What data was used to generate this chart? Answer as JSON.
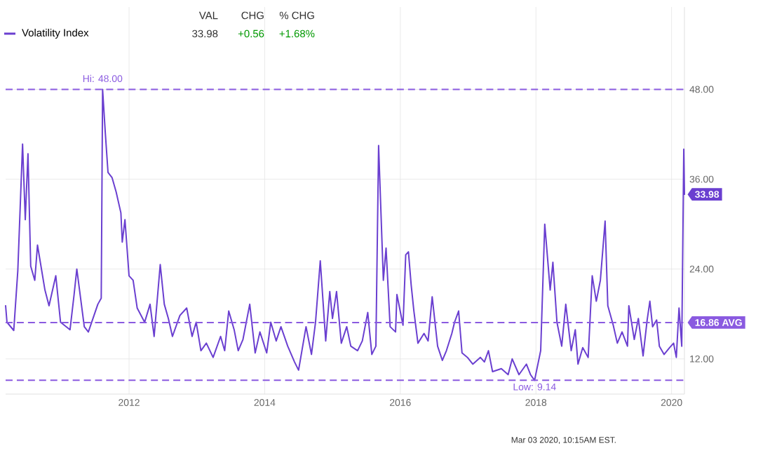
{
  "chart_data": {
    "type": "line",
    "x": [
      2010.18,
      2010.2,
      2010.3,
      2010.36,
      2010.43,
      2010.47,
      2010.51,
      2010.55,
      2010.61,
      2010.65,
      2010.76,
      2010.82,
      2010.92,
      2010.99,
      2011.13,
      2011.19,
      2011.23,
      2011.34,
      2011.4,
      2011.54,
      2011.59,
      2011.61,
      2011.65,
      2011.69,
      2011.75,
      2011.81,
      2011.88,
      2011.9,
      2011.94,
      2012.0,
      2012.06,
      2012.12,
      2012.23,
      2012.31,
      2012.37,
      2012.46,
      2012.52,
      2012.58,
      2012.64,
      2012.75,
      2012.85,
      2012.93,
      2012.99,
      2013.06,
      2013.14,
      2013.24,
      2013.35,
      2013.41,
      2013.47,
      2013.55,
      2013.61,
      2013.68,
      2013.78,
      2013.86,
      2013.93,
      2014.03,
      2014.09,
      2014.17,
      2014.24,
      2014.34,
      2014.44,
      2014.5,
      2014.61,
      2014.69,
      2014.75,
      2014.82,
      2014.9,
      2014.96,
      2015.0,
      2015.06,
      2015.13,
      2015.21,
      2015.27,
      2015.37,
      2015.44,
      2015.52,
      2015.58,
      2015.64,
      2015.68,
      2015.75,
      2015.79,
      2015.85,
      2015.93,
      2015.95,
      2016.04,
      2016.08,
      2016.12,
      2016.16,
      2016.2,
      2016.26,
      2016.35,
      2016.41,
      2016.47,
      2016.55,
      2016.62,
      2016.68,
      2016.76,
      2016.8,
      2016.86,
      2016.91,
      2016.99,
      2017.07,
      2017.18,
      2017.24,
      2017.3,
      2017.36,
      2017.49,
      2017.59,
      2017.65,
      2017.75,
      2017.86,
      2017.92,
      2017.98,
      2018.07,
      2018.13,
      2018.21,
      2018.25,
      2018.31,
      2018.38,
      2018.44,
      2018.52,
      2018.58,
      2018.62,
      2018.69,
      2018.77,
      2018.83,
      2018.89,
      2018.95,
      2019.02,
      2019.06,
      2019.14,
      2019.2,
      2019.27,
      2019.35,
      2019.37,
      2019.45,
      2019.51,
      2019.58,
      2019.64,
      2019.68,
      2019.72,
      2019.78,
      2019.82,
      2019.89,
      2019.97,
      2020.03,
      2020.07,
      2020.11,
      2020.15,
      2020.18,
      2020.19
    ],
    "series": [
      {
        "name": "Volatility Index",
        "color": "#6a3fd0",
        "values": [
          19.1,
          16.9,
          15.8,
          23.8,
          40.7,
          30.6,
          39.4,
          24.4,
          22.5,
          27.2,
          21.2,
          19.1,
          23.1,
          16.9,
          15.9,
          20.6,
          24.0,
          16.3,
          15.6,
          19.3,
          20.1,
          48.0,
          42.2,
          36.9,
          36.2,
          34.3,
          31.5,
          27.6,
          30.6,
          23.1,
          22.5,
          18.8,
          16.9,
          19.3,
          15.0,
          24.6,
          19.3,
          17.4,
          15.0,
          17.8,
          18.8,
          15.0,
          16.9,
          13.1,
          14.1,
          12.2,
          15.0,
          13.1,
          18.4,
          15.9,
          13.1,
          14.6,
          19.3,
          12.8,
          15.6,
          12.8,
          16.9,
          14.4,
          16.3,
          13.7,
          11.6,
          10.5,
          16.3,
          12.6,
          16.9,
          25.1,
          14.4,
          21.0,
          17.4,
          21.0,
          14.1,
          16.3,
          13.7,
          13.1,
          14.4,
          18.2,
          12.6,
          13.7,
          40.5,
          22.5,
          26.8,
          16.3,
          15.6,
          20.6,
          16.5,
          25.9,
          26.3,
          21.9,
          18.4,
          14.1,
          15.4,
          14.4,
          20.3,
          13.7,
          11.8,
          13.1,
          15.4,
          16.9,
          18.4,
          12.8,
          12.2,
          11.3,
          12.2,
          11.6,
          13.1,
          10.3,
          10.7,
          9.9,
          12.0,
          9.9,
          11.3,
          9.9,
          9.14,
          13.1,
          30.0,
          21.2,
          24.9,
          16.9,
          13.7,
          19.3,
          13.1,
          15.9,
          11.3,
          13.5,
          12.2,
          23.1,
          19.7,
          22.5,
          30.4,
          19.1,
          16.5,
          14.1,
          15.6,
          13.7,
          19.1,
          14.6,
          17.4,
          12.4,
          17.2,
          19.7,
          16.3,
          17.2,
          13.7,
          12.6,
          13.5,
          14.1,
          12.2,
          18.8,
          13.7,
          40.0,
          33.98
        ]
      }
    ],
    "xlim": [
      2010.18,
      2020.19
    ],
    "ylim": [
      7.3,
      59
    ],
    "xticks": [
      2012,
      2014,
      2016,
      2018,
      2020
    ],
    "yticks": [
      {
        "value": 12,
        "label": "12.00"
      },
      {
        "value": 24,
        "label": "24.00"
      },
      {
        "value": 36,
        "label": "36.00"
      },
      {
        "value": 48,
        "label": "48.00"
      }
    ],
    "grid": true,
    "ref_lines": [
      {
        "axis": "y",
        "value": 48.0,
        "label": "Hi: 48.00",
        "color": "#8a5ae0",
        "line_style": "dashed"
      },
      {
        "axis": "y",
        "value": 16.86,
        "label": "16.86 AVG",
        "color": "#8a5ae0",
        "line_style": "dashed"
      },
      {
        "axis": "y",
        "value": 9.14,
        "label": "Low: 9.14",
        "color": "#8a5ae0",
        "line_style": "dashed"
      }
    ],
    "annotations": [
      "VAL",
      "CHG",
      "% CHG",
      "33.98",
      "+0.56",
      "+1.68%",
      "Mar 03 2020, 10:15AM EST.",
      {
        "text": "33.98",
        "x": 2020.19,
        "y": 33.98
      }
    ]
  }
}
